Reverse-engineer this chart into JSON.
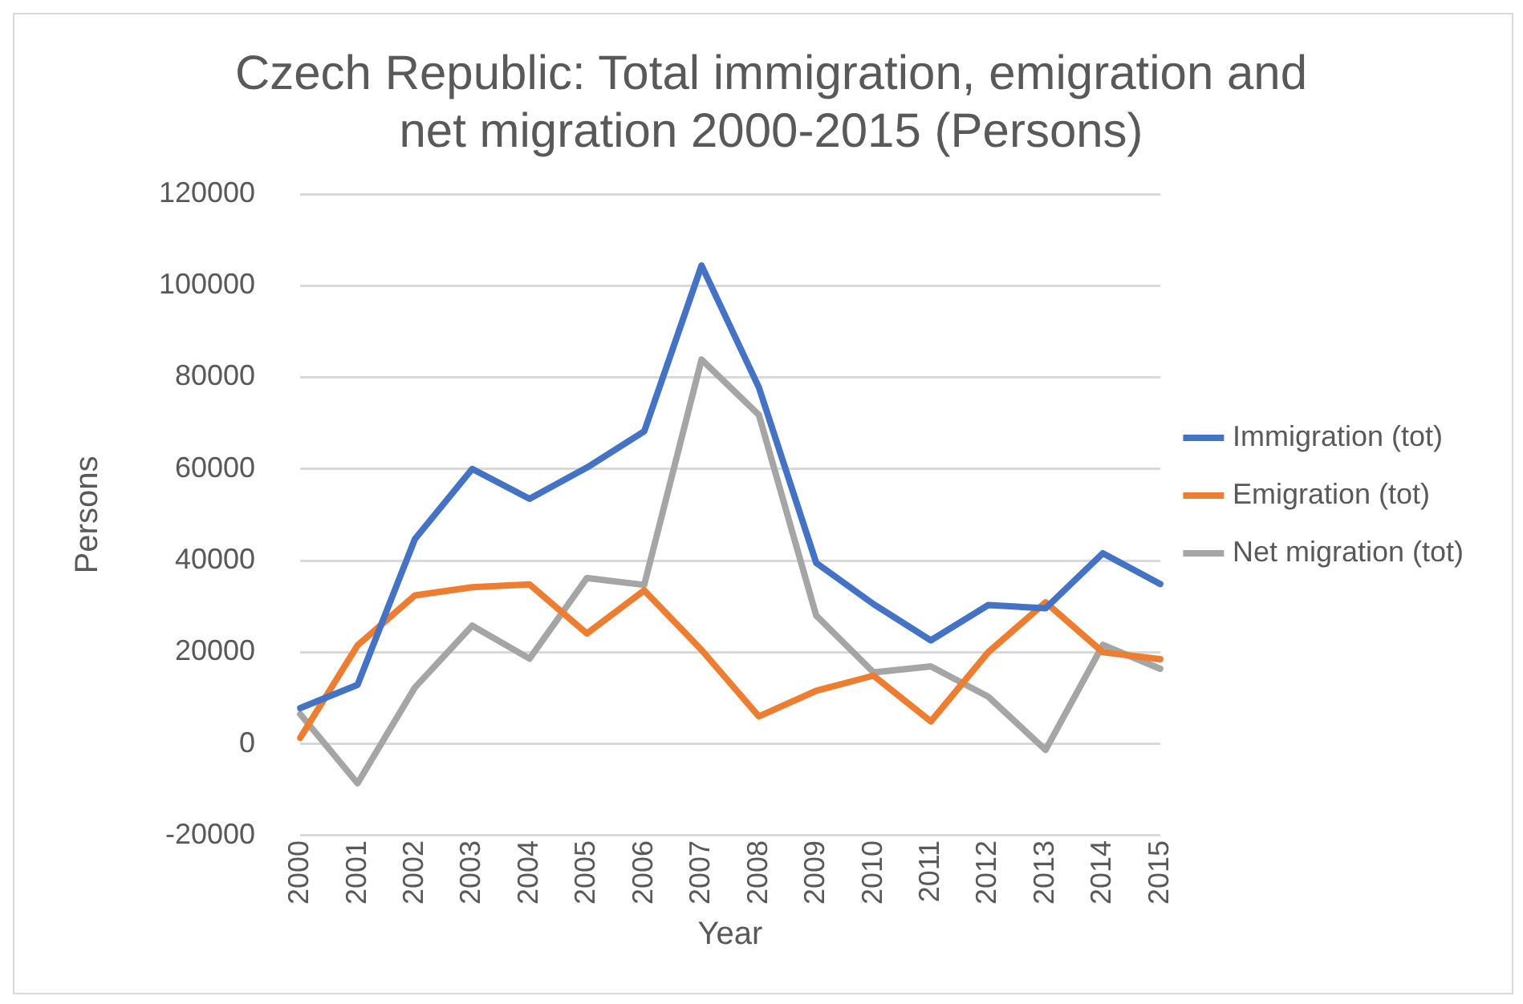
{
  "chart_data": {
    "type": "line",
    "title": "Czech Republic: Total immigration, emigration and net migration 2000-2015 (Persons)",
    "xlabel": "Year",
    "ylabel": "Persons",
    "categories": [
      "2000",
      "2001",
      "2002",
      "2003",
      "2004",
      "2005",
      "2006",
      "2007",
      "2008",
      "2009",
      "2010",
      "2011",
      "2012",
      "2013",
      "2014",
      "2015"
    ],
    "series": [
      {
        "name": "Immigration (tot)",
        "color": "#4472c4",
        "values": [
          7800,
          12900,
          44700,
          60000,
          53500,
          60300,
          68200,
          104400,
          77800,
          39500,
          30500,
          22600,
          30300,
          29600,
          41600,
          34900
        ]
      },
      {
        "name": "Emigration (tot)",
        "color": "#ed7d31",
        "values": [
          1300,
          21500,
          32400,
          34200,
          34800,
          24100,
          33500,
          20500,
          6000,
          11600,
          14900,
          4900,
          20000,
          30900,
          20000,
          18500
        ]
      },
      {
        "name": "Net migration (tot)",
        "color": "#a5a5a5",
        "values": [
          6500,
          -8600,
          12300,
          25800,
          18600,
          36200,
          34700,
          83900,
          71800,
          28000,
          15600,
          16900,
          10300,
          -1300,
          21600,
          16400
        ]
      }
    ],
    "ylim": [
      -20000,
      120000
    ],
    "yticks": [
      -20000,
      0,
      20000,
      40000,
      60000,
      80000,
      100000,
      120000
    ],
    "grid": "y",
    "legend": "right",
    "marker": "none",
    "line_style": "solid"
  }
}
